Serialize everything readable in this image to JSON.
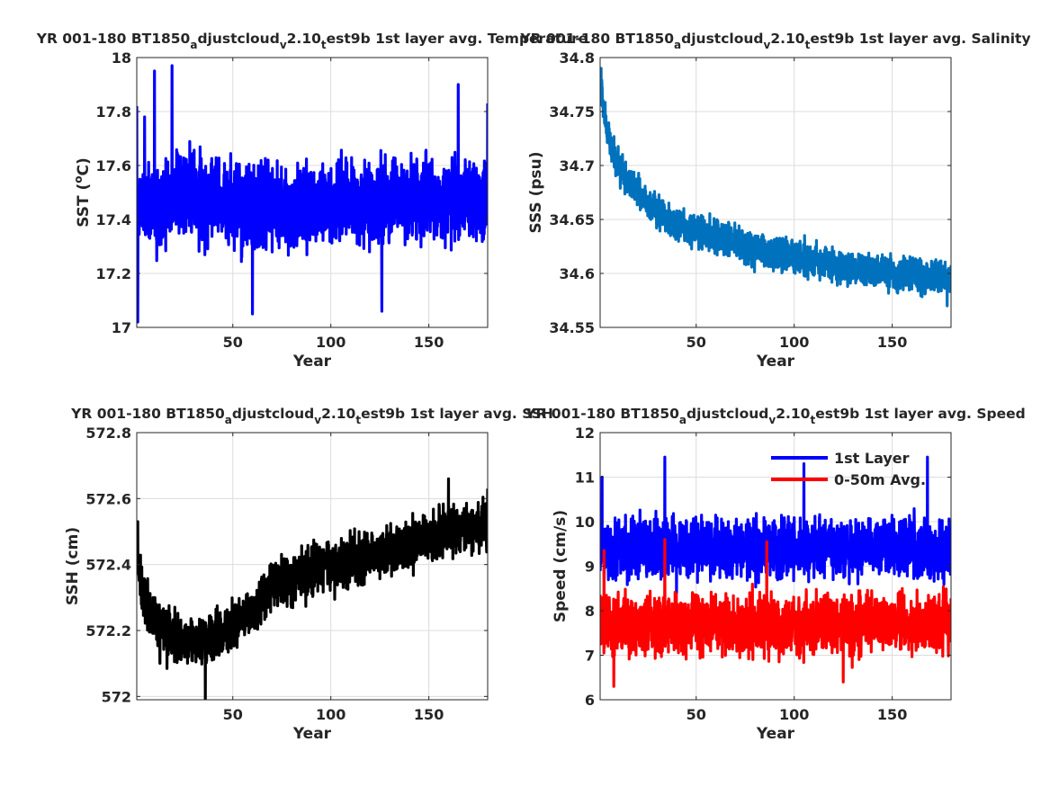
{
  "figure": {
    "background": "#ffffff",
    "axis_color": "#262626",
    "grid_color": "#dcdcdc"
  },
  "chart_data": [
    {
      "id": "sst",
      "type": "line",
      "title_parts": [
        {
          "t": "YR 001-180 BT1850"
        },
        {
          "t": "a",
          "sub": true
        },
        {
          "t": "djustcloud"
        },
        {
          "t": "v",
          "sub": true
        },
        {
          "t": "2.10"
        },
        {
          "t": "t",
          "sub": true
        },
        {
          "t": "est9b 1st layer avg. Temperature"
        }
      ],
      "xlabel": "Year",
      "ylabel": "SST (",
      "ylabel_sup": "o",
      "ylabel_end": "C)",
      "xlim": [
        1,
        180
      ],
      "ylim": [
        17,
        18
      ],
      "xticks": [
        50,
        100,
        150
      ],
      "xtick_labels": [
        "50",
        "100",
        "150"
      ],
      "yticks": [
        17,
        17.2,
        17.4,
        17.6,
        17.8,
        18
      ],
      "ytick_labels": [
        "17",
        "17.2",
        "17.4",
        "17.6",
        "17.8",
        "18"
      ],
      "grid": true,
      "legend": null,
      "series": [
        {
          "color": "#0000ff",
          "n": 2160,
          "keyframes": [
            [
              1,
              17.3
            ],
            [
              2,
              17.45
            ],
            [
              20,
              17.5
            ],
            [
              60,
              17.44
            ],
            [
              120,
              17.46
            ],
            [
              180,
              17.48
            ]
          ],
          "amp": 0.13,
          "seed": 11,
          "extremes": [
            [
              1,
              17.82
            ],
            [
              1.5,
              17.02
            ],
            [
              5,
              17.78
            ],
            [
              10,
              17.95
            ],
            [
              19,
              17.97
            ],
            [
              60,
              17.05
            ],
            [
              126,
              17.06
            ],
            [
              165,
              17.9
            ],
            [
              180,
              17.83
            ]
          ]
        }
      ]
    },
    {
      "id": "sss",
      "type": "line",
      "title_parts": [
        {
          "t": "YR 001-180 BT1850"
        },
        {
          "t": "a",
          "sub": true
        },
        {
          "t": "djustcloud"
        },
        {
          "t": "v",
          "sub": true
        },
        {
          "t": "2.10"
        },
        {
          "t": "t",
          "sub": true
        },
        {
          "t": "est9b 1st layer avg. Salinity"
        }
      ],
      "xlabel": "Year",
      "ylabel": "SSS (psu)",
      "xlim": [
        1,
        180
      ],
      "ylim": [
        34.55,
        34.8
      ],
      "xticks": [
        50,
        100,
        150
      ],
      "xtick_labels": [
        "50",
        "100",
        "150"
      ],
      "yticks": [
        34.55,
        34.6,
        34.65,
        34.7,
        34.75,
        34.8
      ],
      "ytick_labels": [
        "34.55",
        "34.6",
        "34.65",
        "34.7",
        "34.75",
        "34.8"
      ],
      "grid": true,
      "legend": null,
      "series": [
        {
          "color": "#0072bd",
          "n": 2160,
          "keyframes": [
            [
              1,
              34.77
            ],
            [
              5,
              34.73
            ],
            [
              10,
              34.7
            ],
            [
              20,
              34.675
            ],
            [
              30,
              34.655
            ],
            [
              50,
              34.64
            ],
            [
              75,
              34.625
            ],
            [
              100,
              34.615
            ],
            [
              125,
              34.605
            ],
            [
              150,
              34.6
            ],
            [
              180,
              34.595
            ]
          ],
          "amp": 0.013,
          "seed": 23,
          "extremes": [
            [
              1.5,
              34.79
            ],
            [
              178,
              34.57
            ]
          ]
        }
      ]
    },
    {
      "id": "ssh",
      "type": "line",
      "title_parts": [
        {
          "t": "YR 001-180 BT1850"
        },
        {
          "t": "a",
          "sub": true
        },
        {
          "t": "djustcloud"
        },
        {
          "t": "v",
          "sub": true
        },
        {
          "t": "2.10"
        },
        {
          "t": "t",
          "sub": true
        },
        {
          "t": "est9b 1st layer avg. SSH"
        }
      ],
      "xlabel": "Year",
      "ylabel": "SSH (cm)",
      "xlim": [
        1,
        180
      ],
      "ylim": [
        571.99,
        572.8
      ],
      "xticks": [
        50,
        100,
        150
      ],
      "xtick_labels": [
        "50",
        "100",
        "150"
      ],
      "yticks": [
        572,
        572.2,
        572.4,
        572.6,
        572.8
      ],
      "ytick_labels": [
        "572",
        "572.2",
        "572.4",
        "572.6",
        "572.8"
      ],
      "grid": true,
      "legend": null,
      "series": [
        {
          "color": "#000000",
          "n": 2160,
          "keyframes": [
            [
              1,
              572.42
            ],
            [
              5,
              572.3
            ],
            [
              12,
              572.2
            ],
            [
              30,
              572.16
            ],
            [
              45,
              572.2
            ],
            [
              60,
              572.26
            ],
            [
              70,
              572.34
            ],
            [
              100,
              572.4
            ],
            [
              130,
              572.44
            ],
            [
              160,
              572.5
            ],
            [
              180,
              572.52
            ]
          ],
          "amp": 0.065,
          "seed": 37,
          "extremes": [
            [
              1.5,
              572.53
            ],
            [
              36,
              571.99
            ],
            [
              160,
              572.66
            ],
            [
              180,
              572.63
            ]
          ]
        }
      ]
    },
    {
      "id": "speed",
      "type": "line",
      "title_parts": [
        {
          "t": "YR 001-180 BT1850"
        },
        {
          "t": "a",
          "sub": true
        },
        {
          "t": "djustcloud"
        },
        {
          "t": "v",
          "sub": true
        },
        {
          "t": "2.10"
        },
        {
          "t": "t",
          "sub": true
        },
        {
          "t": "est9b 1st layer avg. Speed"
        }
      ],
      "xlabel": "Year",
      "ylabel": "Speed (cm/s)",
      "xlim": [
        1,
        180
      ],
      "ylim": [
        6,
        12
      ],
      "xticks": [
        50,
        100,
        150
      ],
      "xtick_labels": [
        "50",
        "100",
        "150"
      ],
      "yticks": [
        6,
        7,
        8,
        9,
        10,
        11,
        12
      ],
      "ytick_labels": [
        "6",
        "7",
        "8",
        "9",
        "10",
        "11",
        "12"
      ],
      "grid": true,
      "legend": "top-right",
      "series": [
        {
          "name": "1st Layer",
          "color": "#0000ff",
          "n": 2160,
          "keyframes": [
            [
              1,
              9.4
            ],
            [
              180,
              9.4
            ]
          ],
          "amp": 0.55,
          "seed": 51,
          "extremes": [
            [
              2,
              11.0
            ],
            [
              34,
              11.45
            ],
            [
              105,
              11.3
            ],
            [
              168,
              11.45
            ],
            [
              40,
              8.4
            ]
          ]
        },
        {
          "name": "0-50m Avg.",
          "color": "#ff0000",
          "n": 2160,
          "keyframes": [
            [
              1,
              7.7
            ],
            [
              180,
              7.7
            ]
          ],
          "amp": 0.55,
          "seed": 73,
          "extremes": [
            [
              3,
              9.35
            ],
            [
              34,
              9.6
            ],
            [
              86,
              9.55
            ],
            [
              8,
              6.3
            ],
            [
              125,
              6.4
            ]
          ]
        }
      ]
    }
  ]
}
